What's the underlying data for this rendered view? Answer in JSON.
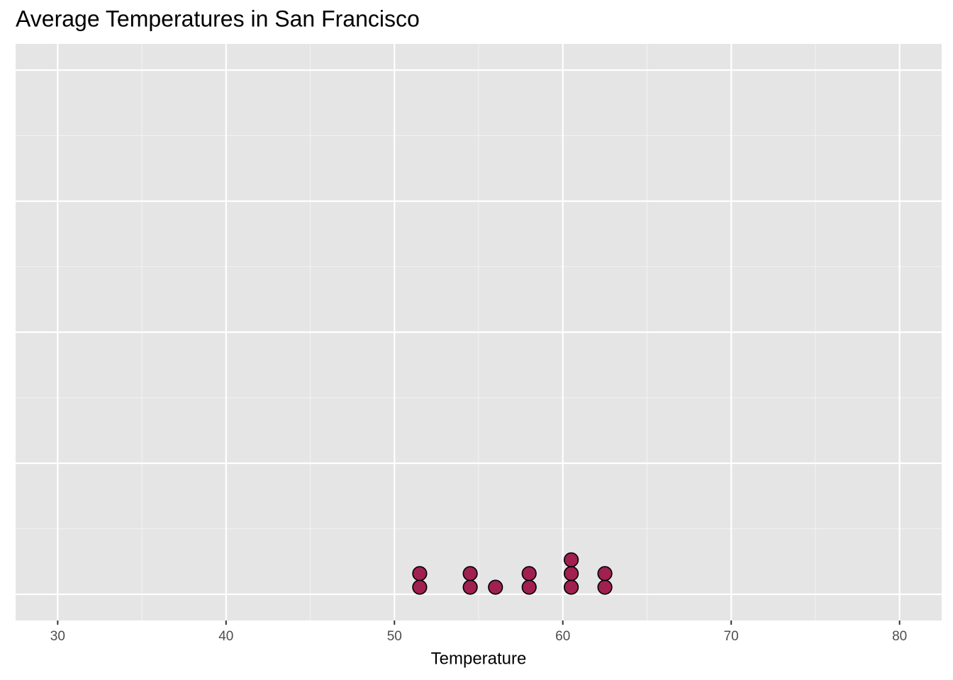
{
  "chart_data": {
    "type": "dotplot",
    "title": "Average Temperatures in San Francisco",
    "x_label": "Temperature",
    "values": [
      51.5,
      51.5,
      54.5,
      54.5,
      56,
      58,
      58,
      60.5,
      60.5,
      60.5,
      62.5,
      62.5
    ],
    "color": "#a0204f",
    "xlim": [
      27.5,
      82.5
    ],
    "xticks": [
      30,
      40,
      50,
      60,
      70,
      80
    ],
    "ylim": [
      -0.05,
      1.05
    ],
    "yticks": [
      0,
      0.25,
      0.5,
      0.75,
      1
    ],
    "grid": true
  }
}
